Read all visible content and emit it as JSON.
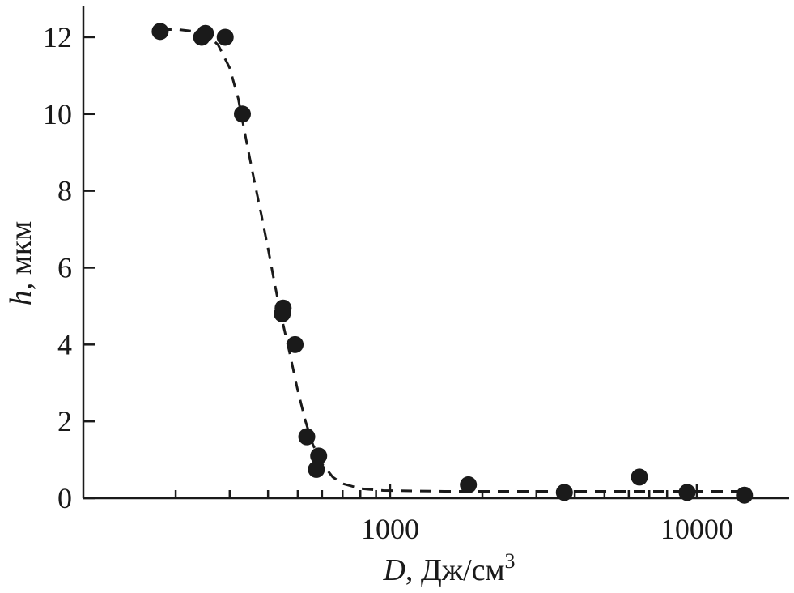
{
  "chart_data": {
    "type": "scatter",
    "title": "",
    "xlabel": {
      "var": "D",
      "sep": ", ",
      "unit": "Дж/см",
      "sup": "3"
    },
    "ylabel": {
      "var": "h",
      "sep": ", ",
      "unit": "мкм"
    },
    "xscale": "log",
    "xlim": [
      100,
      20000
    ],
    "ylim": [
      0,
      12.8
    ],
    "grid": false,
    "legend": "none",
    "x_ticks": {
      "major": [
        1000,
        10000
      ],
      "major_labels": [
        "1000",
        "10000"
      ],
      "minor": [
        200,
        300,
        400,
        500,
        600,
        700,
        800,
        900,
        2000,
        3000,
        4000,
        5000,
        6000,
        7000,
        8000,
        9000
      ]
    },
    "y_ticks": {
      "values": [
        0,
        2,
        4,
        6,
        8,
        10,
        12
      ],
      "labels": [
        "0",
        "2",
        "4",
        "6",
        "8",
        "10",
        "12"
      ]
    },
    "series": [
      {
        "style": "markers",
        "color": "#1a1a1a",
        "points": [
          [
            178,
            12.15
          ],
          [
            243,
            12.0
          ],
          [
            250,
            12.1
          ],
          [
            290,
            12.0
          ],
          [
            330,
            10.0
          ],
          [
            448,
            4.95
          ],
          [
            445,
            4.8
          ],
          [
            490,
            4.0
          ],
          [
            535,
            1.6
          ],
          [
            585,
            1.1
          ],
          [
            575,
            0.75
          ],
          [
            1800,
            0.35
          ],
          [
            3700,
            0.15
          ],
          [
            6500,
            0.55
          ],
          [
            9300,
            0.15
          ],
          [
            14300,
            0.08
          ]
        ]
      },
      {
        "style": "dashed-line",
        "color": "#1a1a1a",
        "points": [
          [
            178,
            12.2
          ],
          [
            205,
            12.2
          ],
          [
            230,
            12.15
          ],
          [
            255,
            12.05
          ],
          [
            275,
            11.8
          ],
          [
            300,
            11.2
          ],
          [
            320,
            10.4
          ],
          [
            340,
            9.3
          ],
          [
            360,
            8.3
          ],
          [
            380,
            7.4
          ],
          [
            400,
            6.5
          ],
          [
            420,
            5.6
          ],
          [
            440,
            4.8
          ],
          [
            470,
            3.8
          ],
          [
            500,
            2.8
          ],
          [
            530,
            2.0
          ],
          [
            560,
            1.4
          ],
          [
            600,
            0.9
          ],
          [
            650,
            0.55
          ],
          [
            700,
            0.38
          ],
          [
            800,
            0.25
          ],
          [
            950,
            0.2
          ],
          [
            1500,
            0.18
          ],
          [
            3000,
            0.18
          ],
          [
            6000,
            0.18
          ],
          [
            10000,
            0.18
          ],
          [
            14300,
            0.18
          ]
        ]
      }
    ]
  }
}
